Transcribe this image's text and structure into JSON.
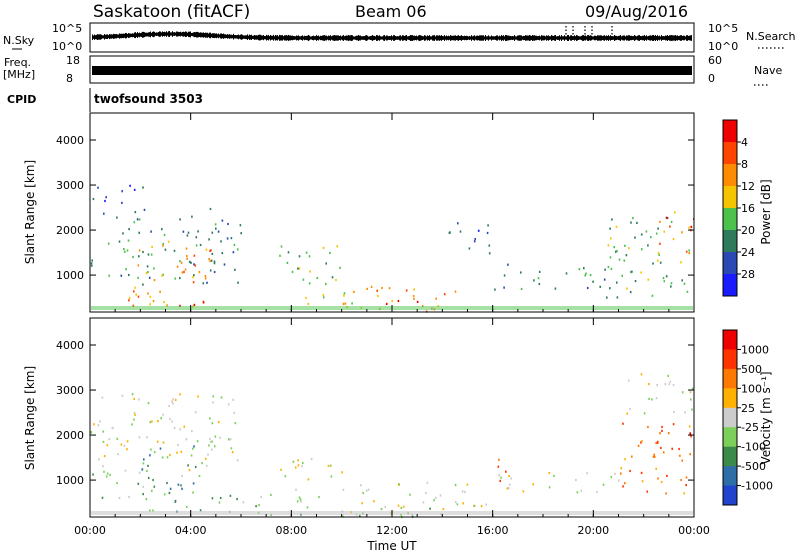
{
  "header": {
    "station": "Saskatoon (fitACF)",
    "beam": "Beam 06",
    "date": "09/Aug/2016"
  },
  "status_panels": {
    "nsky": {
      "label": "N.Sky",
      "ticks": [
        "10^5",
        "10^0"
      ]
    },
    "freq": {
      "label_line1": "Freq.",
      "label_line2": "[MHz]",
      "ticks": [
        "18",
        "8"
      ]
    },
    "nsearch": {
      "label": "N.Search",
      "ticks": [
        "10^5",
        "10^0"
      ]
    },
    "nave": {
      "label": "Nave",
      "ticks": [
        "60",
        "0"
      ]
    },
    "cpid": {
      "label": "CPID",
      "value": "twofsound 3503"
    }
  },
  "chart_data": [
    {
      "type": "heatmap",
      "name": "power",
      "xlabel": "",
      "ylabel": "Slant Range [km]",
      "ylim": [
        180,
        4600
      ],
      "yticks": [
        "1000",
        "2000",
        "3000",
        "4000"
      ],
      "xlim": [
        0,
        24
      ],
      "colorbar": {
        "label": "Power [dB]",
        "ticks": [
          "4",
          "8",
          "12",
          "16",
          "20",
          "24",
          "28"
        ],
        "colors": [
          "#1b1bff",
          "#2a49b4",
          "#2e7a5c",
          "#4cc24c",
          "#f5c400",
          "#ff8c00",
          "#ff4400",
          "#ee0000"
        ]
      },
      "regions": [
        {
          "t": [
            0.0,
            6.0
          ],
          "r": [
            800,
            2500
          ],
          "level": 2
        },
        {
          "t": [
            0.0,
            2.5
          ],
          "r": [
            2600,
            3050
          ],
          "level": 1
        },
        {
          "t": [
            1.5,
            4.8
          ],
          "r": [
            300,
            1900
          ],
          "level": 5
        },
        {
          "t": [
            3.5,
            4.8
          ],
          "r": [
            200,
            450
          ],
          "level": 7
        },
        {
          "t": [
            7.5,
            10.0
          ],
          "r": [
            700,
            1700
          ],
          "level": 3
        },
        {
          "t": [
            8.5,
            10.5
          ],
          "r": [
            300,
            900
          ],
          "level": 4
        },
        {
          "t": [
            10.0,
            14.5
          ],
          "r": [
            200,
            800
          ],
          "level": 5
        },
        {
          "t": [
            11.5,
            13.0
          ],
          "r": [
            250,
            450
          ],
          "level": 7
        },
        {
          "t": [
            14.0,
            16.0
          ],
          "r": [
            1500,
            2200
          ],
          "level": 1
        },
        {
          "t": [
            16.0,
            21.0
          ],
          "r": [
            700,
            1300
          ],
          "level": 2
        },
        {
          "t": [
            20.5,
            24.0
          ],
          "r": [
            500,
            2500
          ],
          "level": 3
        },
        {
          "t": [
            22.5,
            24.0
          ],
          "r": [
            1500,
            2300
          ],
          "level": 6
        }
      ]
    },
    {
      "type": "heatmap",
      "name": "velocity",
      "xlabel": "Time UT",
      "ylabel": "Slant Range [km]",
      "ylim": [
        180,
        4600
      ],
      "yticks": [
        "1000",
        "2000",
        "3000",
        "4000"
      ],
      "xlim": [
        0,
        24
      ],
      "xticks": [
        "00:00",
        "04:00",
        "08:00",
        "12:00",
        "16:00",
        "20:00",
        "00:00"
      ],
      "colorbar": {
        "label": "Velocity [m s⁻¹]",
        "ticks": [
          "1000",
          "500",
          "100",
          "25",
          "-25",
          "-100",
          "-500",
          "-1000"
        ],
        "colors": [
          "#2244cc",
          "#2e6ea6",
          "#3c8a4a",
          "#7cd05a",
          "#cccccc",
          "#ffb000",
          "#ff7800",
          "#ff3300",
          "#ee0000"
        ]
      },
      "regions": [
        {
          "t": [
            0.0,
            6.0
          ],
          "r": [
            1100,
            3000
          ],
          "level": 4
        },
        {
          "t": [
            0.0,
            2.5
          ],
          "r": [
            600,
            1300
          ],
          "level": 3
        },
        {
          "t": [
            2.0,
            4.5
          ],
          "r": [
            300,
            1800
          ],
          "level": 2
        },
        {
          "t": [
            4.5,
            10.0
          ],
          "r": [
            250,
            700
          ],
          "level": 3
        },
        {
          "t": [
            7.5,
            10.0
          ],
          "r": [
            800,
            1500
          ],
          "level": 4
        },
        {
          "t": [
            10.0,
            16.0
          ],
          "r": [
            200,
            1000
          ],
          "level": 4
        },
        {
          "t": [
            10.0,
            14.0
          ],
          "r": [
            200,
            400
          ],
          "level": 3
        },
        {
          "t": [
            15.5,
            16.5
          ],
          "r": [
            1000,
            1500
          ],
          "level": 6
        },
        {
          "t": [
            16.0,
            21.0
          ],
          "r": [
            700,
            1200
          ],
          "level": 4
        },
        {
          "t": [
            21.0,
            24.0
          ],
          "r": [
            2500,
            3400
          ],
          "level": 4
        },
        {
          "t": [
            21.0,
            24.0
          ],
          "r": [
            700,
            2300
          ],
          "level": 6
        },
        {
          "t": [
            22.5,
            24.0
          ],
          "r": [
            1600,
            2100
          ],
          "level": 7
        }
      ]
    }
  ]
}
